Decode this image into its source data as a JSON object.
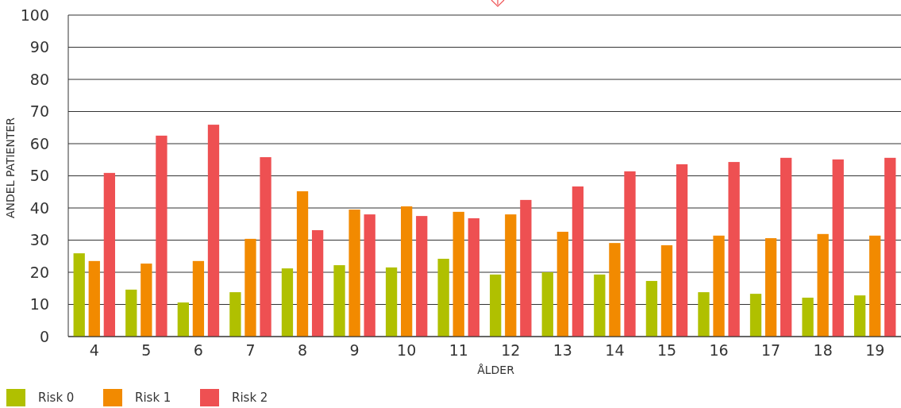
{
  "chart_data": {
    "type": "bar",
    "xlabel": "ÅLDER",
    "ylabel": "ANDEL PATIENTER",
    "categories": [
      "4",
      "5",
      "6",
      "7",
      "8",
      "9",
      "10",
      "11",
      "12",
      "13",
      "14",
      "15",
      "16",
      "17",
      "18",
      "19"
    ],
    "series": [
      {
        "name": "Risk 0",
        "color": "#b0c000",
        "values": [
          25.9,
          14.6,
          10.6,
          13.8,
          21.2,
          22.2,
          21.5,
          24.2,
          19.3,
          20,
          19.3,
          17.3,
          13.8,
          13.3,
          12.1,
          12.8
        ]
      },
      {
        "name": "Risk 1",
        "color": "#f28a00",
        "values": [
          23.5,
          22.7,
          23.5,
          30.4,
          45.2,
          39.5,
          40.5,
          38.8,
          38,
          32.6,
          29.1,
          28.4,
          31.4,
          30.6,
          31.9,
          31.4
        ]
      },
      {
        "name": "Risk 2",
        "color": "#ee5052",
        "values": [
          50.9,
          62.5,
          65.9,
          55.8,
          33.1,
          38,
          37.5,
          36.8,
          42.5,
          46.7,
          51.4,
          53.6,
          54.3,
          55.6,
          55.1,
          55.6
        ]
      }
    ],
    "ylim": [
      0,
      100
    ],
    "yticks": [
      0,
      10,
      20,
      30,
      40,
      50,
      60,
      70,
      80,
      90,
      100
    ],
    "grid": "y",
    "legend": "bottom left"
  }
}
